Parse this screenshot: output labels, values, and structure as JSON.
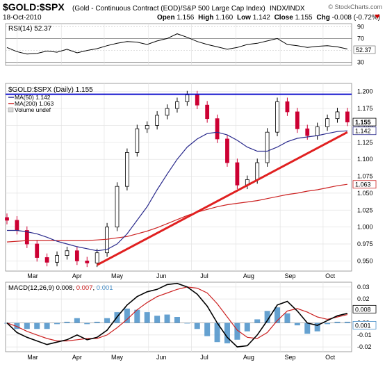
{
  "header": {
    "symbol": "$GOLD:$SPX",
    "description": "(Gold - Continuous Contract (EOD)/S&P 500 Large Cap Index)",
    "exchange": "INDX/INDX",
    "watermark": "© StockCharts.com",
    "date": "18-Oct-2010",
    "quote": {
      "open_label": "Open",
      "open": "1.156",
      "high_label": "High",
      "high": "1.160",
      "low_label": "Low",
      "low": "1.142",
      "close_label": "Close",
      "close": "1.155",
      "chg_label": "Chg",
      "chg": "-0.008 (-0.72%)"
    }
  },
  "rsi_panel": {
    "label": "RSI(14) 52.37",
    "current_tag": "52.37",
    "levels": [
      "90",
      "70",
      "50",
      "30"
    ]
  },
  "price_panel": {
    "title": "$GOLD:$SPX (Daily) 1.155",
    "legend": [
      {
        "text": "MA(50) 1.142",
        "color": "#2a2a8c"
      },
      {
        "text": "MA(200) 1.063",
        "color": "#cc2222"
      },
      {
        "text": "Volume undef",
        "color": "#888888"
      }
    ],
    "y_ticks": [
      "1.200",
      "1.175",
      "1.150",
      "1.125",
      "1.100",
      "1.075",
      "1.050",
      "1.025",
      "1.000",
      "0.975",
      "0.950"
    ],
    "tags": [
      {
        "text": "1.155",
        "bold": true
      },
      {
        "text": "1.142",
        "bold": false
      },
      {
        "text": "1.063",
        "bold": false
      }
    ]
  },
  "macd_panel": {
    "label_prefix": "MACD(12,26,9)",
    "macd": "0.008",
    "signal": "0.007",
    "histogram": "0.001",
    "y_ticks": [
      "0.03",
      "0.02",
      "0.01",
      "0.00",
      "-0.01",
      "-0.02"
    ],
    "tags": [
      "0.008",
      "0.001"
    ]
  },
  "x_axis": {
    "months": [
      "Mar",
      "Apr",
      "May",
      "Jun",
      "Jul",
      "Aug",
      "Sep",
      "Oct"
    ]
  },
  "colors": {
    "candle_up": "#000000",
    "candle_down": "#cc0033",
    "ma50": "#2a2a8c",
    "ma200": "#cc2222",
    "trendline": "#e02020",
    "resistance": "#1010cc",
    "macd_line": "#000000",
    "signal_line": "#cc2222",
    "histogram": "#4a90c8"
  },
  "chart_data": {
    "type": "line",
    "title": "$GOLD:$SPX (Daily) 1.155",
    "x": [
      "2010-02-22",
      "2010-03-01",
      "2010-03-08",
      "2010-03-15",
      "2010-03-22",
      "2010-03-29",
      "2010-04-05",
      "2010-04-12",
      "2010-04-19",
      "2010-04-26",
      "2010-05-03",
      "2010-05-10",
      "2010-05-17",
      "2010-05-24",
      "2010-05-31",
      "2010-06-07",
      "2010-06-14",
      "2010-06-21",
      "2010-06-28",
      "2010-07-05",
      "2010-07-12",
      "2010-07-19",
      "2010-07-26",
      "2010-08-02",
      "2010-08-09",
      "2010-08-16",
      "2010-08-23",
      "2010-08-30",
      "2010-09-06",
      "2010-09-13",
      "2010-09-20",
      "2010-09-27",
      "2010-10-04",
      "2010-10-11",
      "2010-10-18"
    ],
    "series": [
      {
        "name": "$GOLD:$SPX",
        "values": [
          1.01,
          0.995,
          0.975,
          0.955,
          0.948,
          0.958,
          0.965,
          0.95,
          0.947,
          0.962,
          1.0,
          1.06,
          1.11,
          1.145,
          1.15,
          1.165,
          1.175,
          1.185,
          1.195,
          1.18,
          1.16,
          1.13,
          1.095,
          1.062,
          1.07,
          1.095,
          1.14,
          1.185,
          1.17,
          1.145,
          1.135,
          1.148,
          1.16,
          1.17,
          1.155
        ]
      },
      {
        "name": "MA(50)",
        "values": [
          0.995,
          0.995,
          0.993,
          0.99,
          0.985,
          0.979,
          0.975,
          0.971,
          0.968,
          0.965,
          0.967,
          0.975,
          0.99,
          1.01,
          1.03,
          1.055,
          1.078,
          1.1,
          1.118,
          1.13,
          1.138,
          1.14,
          1.136,
          1.128,
          1.118,
          1.112,
          1.112,
          1.118,
          1.126,
          1.131,
          1.133,
          1.135,
          1.138,
          1.141,
          1.142
        ]
      },
      {
        "name": "MA(200)",
        "values": [
          0.978,
          0.979,
          0.98,
          0.98,
          0.98,
          0.98,
          0.98,
          0.98,
          0.98,
          0.981,
          0.982,
          0.984,
          0.986,
          0.99,
          0.994,
          0.999,
          1.005,
          1.011,
          1.017,
          1.022,
          1.026,
          1.03,
          1.033,
          1.035,
          1.037,
          1.039,
          1.042,
          1.045,
          1.048,
          1.05,
          1.053,
          1.055,
          1.058,
          1.061,
          1.063
        ]
      }
    ],
    "resistance_level": 1.196,
    "trendline": {
      "from": [
        "2010-04-26",
        0.944
      ],
      "to": [
        "2010-10-18",
        1.14
      ]
    },
    "ylim": [
      0.935,
      1.212
    ],
    "rsi": {
      "values": [
        55,
        48,
        44,
        45,
        49,
        47,
        52,
        46,
        50,
        53,
        58,
        62,
        65,
        64,
        60,
        66,
        70,
        78,
        72,
        65,
        60,
        56,
        52,
        55,
        60,
        62,
        66,
        70,
        60,
        58,
        55,
        57,
        58,
        56,
        52.37
      ],
      "ylim": [
        25,
        95
      ]
    },
    "macd": {
      "macd": [
        0.0,
        -0.008,
        -0.012,
        -0.015,
        -0.018,
        -0.016,
        -0.014,
        -0.01,
        -0.014,
        -0.012,
        -0.006,
        0.005,
        0.015,
        0.022,
        0.026,
        0.028,
        0.032,
        0.033,
        0.03,
        0.024,
        0.014,
        0.0,
        -0.012,
        -0.02,
        -0.019,
        -0.01,
        0.002,
        0.015,
        0.018,
        0.01,
        0.0,
        -0.002,
        0.002,
        0.006,
        0.008
      ],
      "signal": [
        0.0,
        -0.003,
        -0.007,
        -0.01,
        -0.013,
        -0.015,
        -0.015,
        -0.014,
        -0.013,
        -0.013,
        -0.01,
        -0.004,
        0.003,
        0.011,
        0.017,
        0.022,
        0.025,
        0.028,
        0.03,
        0.029,
        0.025,
        0.016,
        0.005,
        -0.006,
        -0.012,
        -0.013,
        -0.008,
        0.002,
        0.01,
        0.012,
        0.009,
        0.005,
        0.003,
        0.005,
        0.007
      ],
      "histogram": [
        0.0,
        -0.005,
        -0.005,
        -0.005,
        -0.005,
        -0.001,
        0.001,
        0.004,
        -0.001,
        0.001,
        0.004,
        0.009,
        0.012,
        0.011,
        0.009,
        0.006,
        0.007,
        0.005,
        0.0,
        -0.005,
        -0.011,
        -0.016,
        -0.017,
        -0.014,
        -0.007,
        0.003,
        0.01,
        0.013,
        0.008,
        -0.002,
        -0.009,
        -0.007,
        -0.001,
        0.001,
        0.001
      ],
      "ylim": [
        -0.024,
        0.034
      ]
    }
  }
}
